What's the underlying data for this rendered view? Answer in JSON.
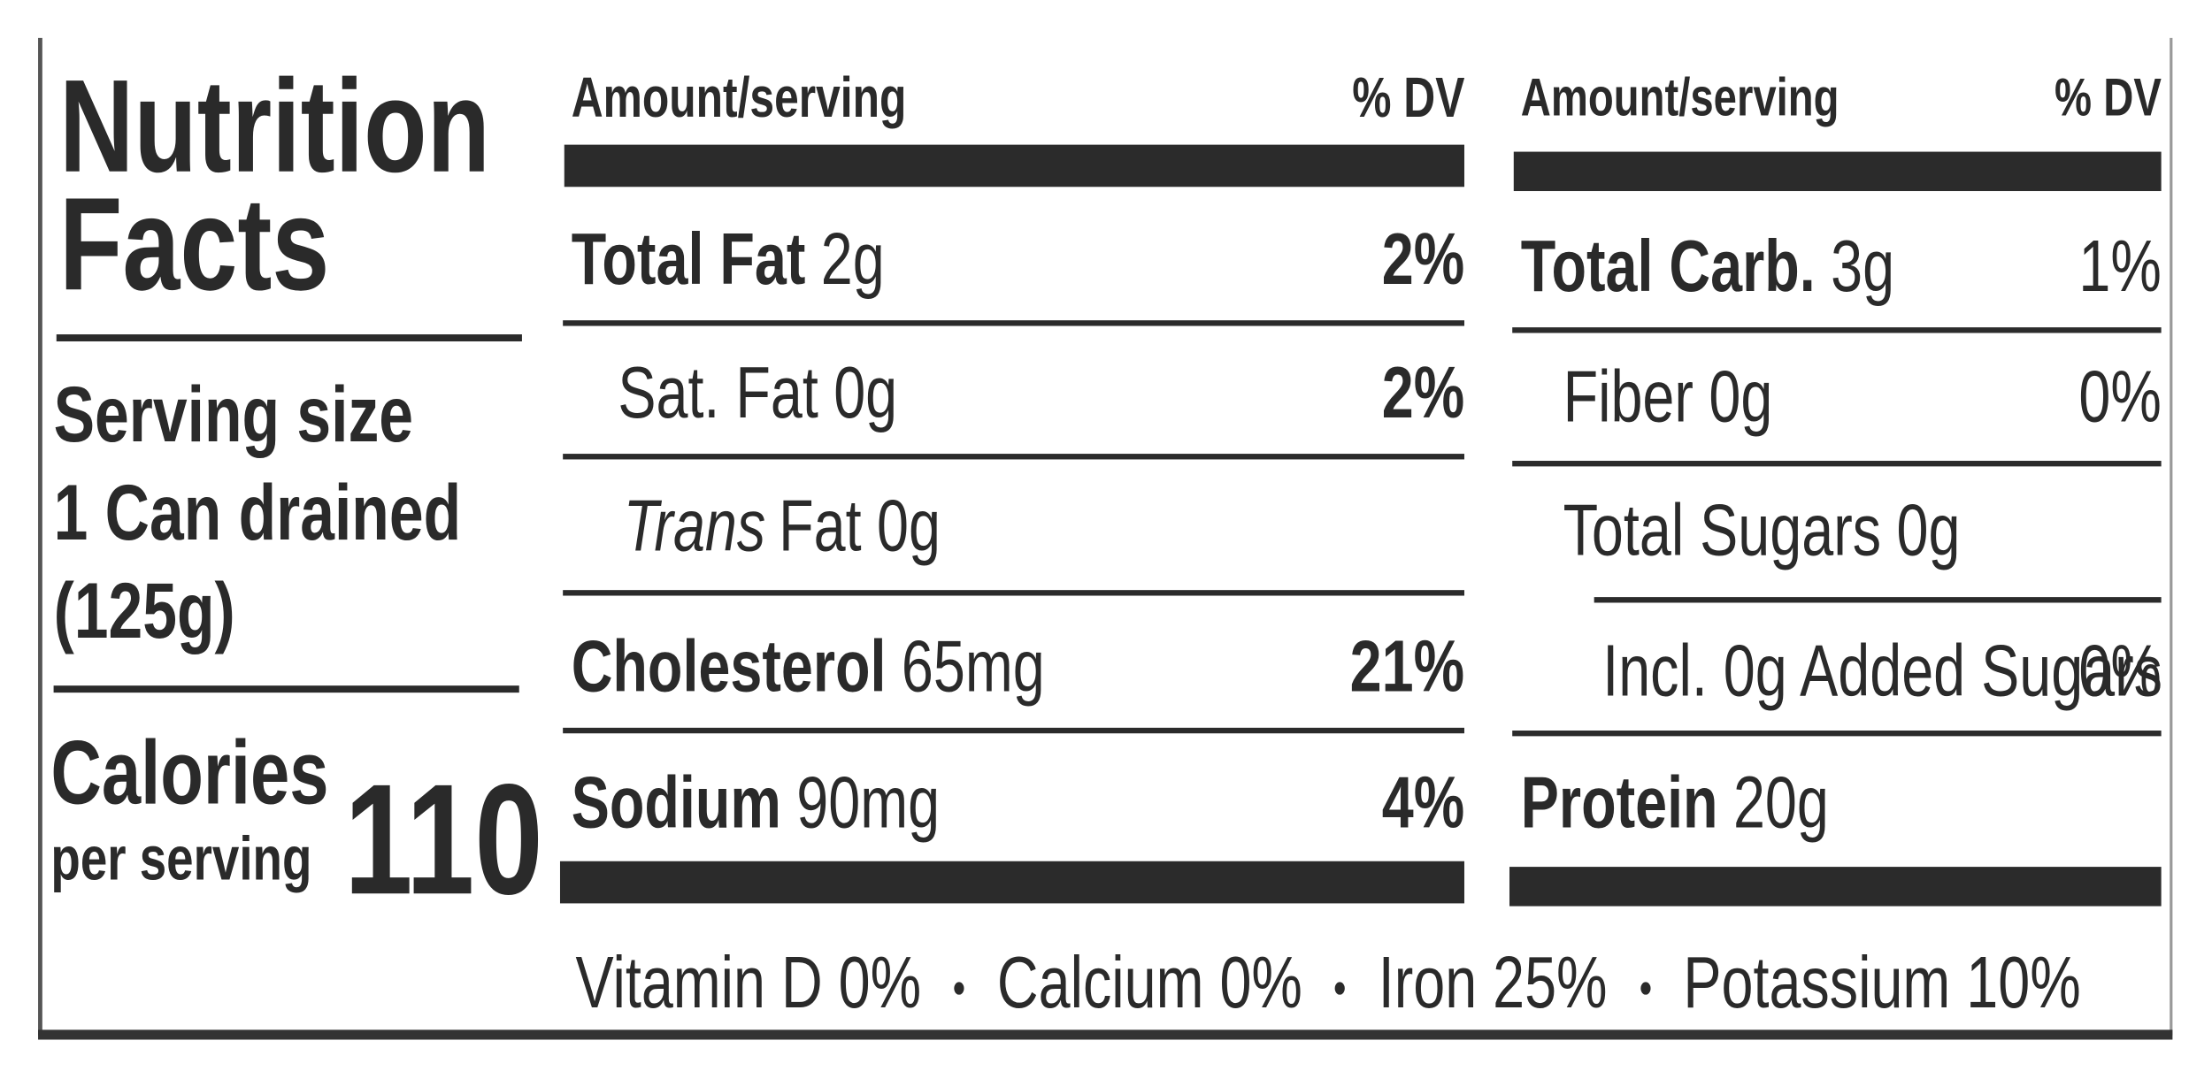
{
  "left": {
    "title_line1": "Nutrition",
    "title_line2": "Facts",
    "serving_label": "Serving size",
    "serving_line1": "1 Can drained",
    "serving_line2": "(125g)",
    "calories_label": "Calories",
    "calories_sublabel": "per serving",
    "calories": "110"
  },
  "columns": [
    {
      "header_amount": "Amount/serving",
      "header_dv": "% DV",
      "rows": [
        {
          "name": "Total Fat",
          "amount": "2g",
          "dv": "2%"
        },
        {
          "name": "Sat. Fat",
          "amount": "0g",
          "dv": "2%"
        },
        {
          "name_italic": "Trans",
          "name": "Fat",
          "amount": "0g"
        },
        {
          "name": "Cholesterol",
          "amount": "65mg",
          "dv": "21%"
        },
        {
          "name": "Sodium",
          "amount": "90mg",
          "dv": "4%"
        }
      ]
    },
    {
      "header_amount": "Amount/serving",
      "header_dv": "% DV",
      "rows": [
        {
          "name": "Total Carb.",
          "amount": "3g",
          "dv": "1%"
        },
        {
          "name": "Fiber",
          "amount": "0g",
          "dv": "0%"
        },
        {
          "name": "Total Sugars",
          "amount": "0g"
        },
        {
          "name": "Incl. 0g Added Sugars",
          "dv": "0%"
        },
        {
          "name": "Protein",
          "amount": "20g"
        }
      ]
    }
  ],
  "footer": [
    "Vitamin D 0%",
    "Calcium 0%",
    "Iron 25%",
    "Potassium 10%"
  ]
}
